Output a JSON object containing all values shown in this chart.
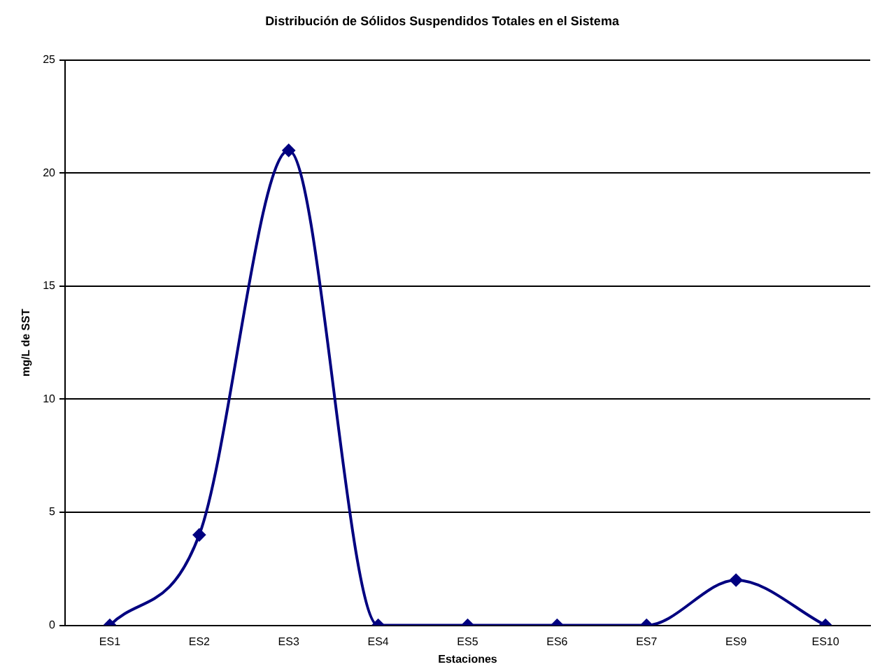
{
  "chart_data": {
    "type": "line",
    "title": "Distribución de Sólidos Suspendidos Totales en el Sistema",
    "xlabel": "Estaciones",
    "ylabel": "mg/L de SST",
    "categories": [
      "ES1",
      "ES2",
      "ES3",
      "ES4",
      "ES5",
      "ES6",
      "ES7",
      "ES9",
      "ES10"
    ],
    "series": [
      {
        "color": "#000080",
        "values": [
          0,
          4,
          21,
          0,
          0,
          0,
          0,
          2,
          0
        ]
      }
    ],
    "ylim": [
      0,
      25
    ],
    "yticks": [
      0,
      5,
      10,
      15,
      20,
      25
    ],
    "grid": "y",
    "legend": false,
    "marker": "diamond",
    "line_style": "solid"
  }
}
